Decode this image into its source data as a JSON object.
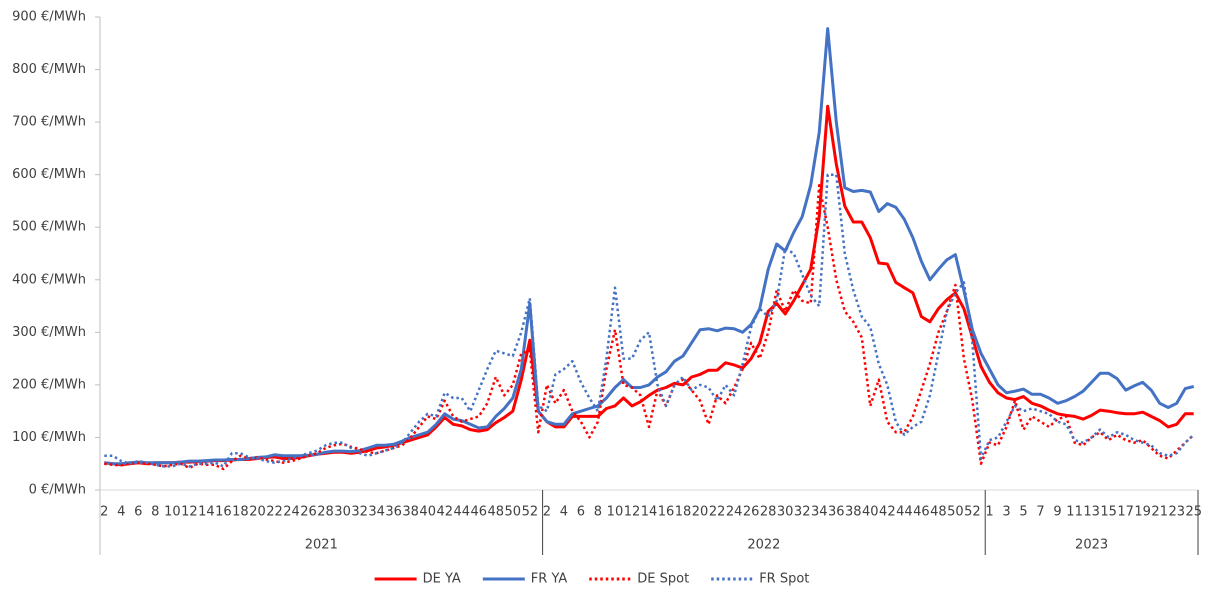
{
  "chart_data": {
    "type": "line",
    "ylim": [
      0,
      900
    ],
    "yticks": [
      {
        "value": 0,
        "label": "0 €/MWh"
      },
      {
        "value": 100,
        "label": "100 €/MWh"
      },
      {
        "value": 200,
        "label": "200 €/MWh"
      },
      {
        "value": 300,
        "label": "300 €/MWh"
      },
      {
        "value": 400,
        "label": "400 €/MWh"
      },
      {
        "value": 500,
        "label": "500 €/MWh"
      },
      {
        "value": 600,
        "label": "600 €/MWh"
      },
      {
        "value": 700,
        "label": "700 €/MWh"
      },
      {
        "value": 800,
        "label": "800 €/MWh"
      },
      {
        "value": 900,
        "label": "900 €/MWh"
      }
    ],
    "category_groups": [
      {
        "name": "2021",
        "categories": [
          "2",
          null,
          "4",
          null,
          "6",
          null,
          "8",
          null,
          "10",
          null,
          "12",
          null,
          "14",
          null,
          "16",
          null,
          "18",
          null,
          "20",
          null,
          "22",
          null,
          "24",
          null,
          "26",
          null,
          "28",
          null,
          "30",
          null,
          "32",
          null,
          "34",
          null,
          "36",
          null,
          "38",
          null,
          "40",
          null,
          "42",
          null,
          "44",
          null,
          "46",
          null,
          "48",
          null,
          "50",
          null,
          "52",
          null
        ]
      },
      {
        "name": "2022",
        "categories": [
          "2",
          null,
          "4",
          null,
          "6",
          null,
          "8",
          null,
          "10",
          null,
          "12",
          null,
          "14",
          null,
          "16",
          null,
          "18",
          null,
          "20",
          null,
          "22",
          null,
          "24",
          null,
          "26",
          null,
          "28",
          null,
          "30",
          null,
          "32",
          null,
          "34",
          null,
          "36",
          null,
          "38",
          null,
          "40",
          null,
          "42",
          null,
          "44",
          null,
          "46",
          null,
          "48",
          null,
          "50",
          null,
          "52",
          null
        ]
      },
      {
        "name": "2023",
        "categories": [
          "1",
          null,
          "3",
          null,
          "5",
          null,
          "7",
          null,
          "9",
          null,
          "11",
          null,
          "13",
          null,
          "15",
          null,
          "17",
          null,
          "19",
          null,
          "21",
          null,
          "23",
          null,
          "25"
        ]
      }
    ],
    "series": [
      {
        "name": "DE YA",
        "color": "#ff0000",
        "dash": false,
        "values": [
          52,
          50,
          48,
          50,
          52,
          50,
          52,
          52,
          52,
          53,
          53,
          54,
          55,
          56,
          56,
          57,
          58,
          58,
          60,
          62,
          63,
          60,
          60,
          62,
          65,
          68,
          70,
          72,
          72,
          70,
          72,
          75,
          80,
          82,
          85,
          90,
          95,
          100,
          105,
          120,
          138,
          125,
          122,
          115,
          112,
          115,
          128,
          138,
          150,
          210,
          285,
          150,
          130,
          120,
          120,
          140,
          140,
          140,
          140,
          155,
          160,
          175,
          160,
          168,
          180,
          190,
          195,
          203,
          200,
          215,
          220,
          228,
          228,
          242,
          238,
          232,
          250,
          280,
          340,
          355,
          335,
          360,
          390,
          420,
          520,
          730,
          620,
          540,
          510,
          510,
          480,
          432,
          430,
          395,
          385,
          375,
          330,
          320,
          345,
          362,
          375,
          345,
          290,
          235,
          205,
          185,
          175,
          172,
          178,
          165,
          160,
          152,
          145,
          142,
          140,
          135,
          142,
          152,
          150,
          147,
          145,
          145,
          148,
          140,
          132,
          120,
          125,
          145,
          145
        ]
      },
      {
        "name": "FR YA",
        "color": "#4472c4",
        "dash": false,
        "values": [
          52,
          50,
          50,
          52,
          53,
          52,
          52,
          52,
          52,
          53,
          55,
          55,
          56,
          57,
          57,
          58,
          58,
          60,
          62,
          63,
          67,
          65,
          65,
          65,
          66,
          68,
          72,
          74,
          74,
          73,
          75,
          80,
          85,
          85,
          87,
          93,
          100,
          105,
          110,
          125,
          145,
          135,
          132,
          125,
          118,
          120,
          140,
          155,
          175,
          230,
          355,
          150,
          130,
          125,
          125,
          145,
          150,
          155,
          160,
          175,
          195,
          210,
          195,
          195,
          200,
          215,
          225,
          245,
          255,
          280,
          305,
          307,
          303,
          308,
          307,
          300,
          315,
          345,
          420,
          468,
          455,
          490,
          520,
          580,
          680,
          878,
          700,
          575,
          568,
          570,
          567,
          530,
          545,
          538,
          515,
          480,
          435,
          400,
          420,
          438,
          448,
          380,
          305,
          260,
          230,
          200,
          185,
          188,
          192,
          182,
          182,
          175,
          165,
          170,
          178,
          188,
          205,
          222,
          222,
          212,
          190,
          198,
          205,
          190,
          165,
          157,
          165,
          193,
          197
        ]
      },
      {
        "name": "DE Spot",
        "color": "#ff0000",
        "dash": true,
        "values": [
          50,
          48,
          47,
          50,
          52,
          50,
          48,
          45,
          48,
          50,
          42,
          50,
          48,
          48,
          40,
          55,
          65,
          60,
          62,
          58,
          55,
          52,
          55,
          60,
          65,
          70,
          80,
          85,
          88,
          82,
          78,
          72,
          70,
          75,
          80,
          85,
          100,
          120,
          140,
          135,
          170,
          140,
          130,
          135,
          140,
          165,
          215,
          180,
          200,
          260,
          265,
          110,
          200,
          165,
          190,
          150,
          130,
          100,
          130,
          230,
          305,
          200,
          195,
          180,
          120,
          190,
          160,
          200,
          210,
          190,
          170,
          125,
          180,
          165,
          195,
          230,
          280,
          250,
          300,
          380,
          340,
          380,
          360,
          355,
          580,
          500,
          400,
          340,
          320,
          290,
          160,
          210,
          130,
          110,
          110,
          140,
          190,
          240,
          300,
          340,
          390,
          250,
          170,
          50,
          90,
          85,
          120,
          170,
          115,
          140,
          130,
          120,
          135,
          140,
          90,
          85,
          100,
          110,
          95,
          105,
          95,
          90,
          95,
          80,
          65,
          60,
          75,
          90,
          105
        ]
      },
      {
        "name": "FR Spot",
        "color": "#4472c4",
        "dash": true,
        "values": [
          65,
          65,
          55,
          50,
          55,
          52,
          48,
          45,
          45,
          50,
          45,
          50,
          50,
          52,
          45,
          70,
          70,
          62,
          60,
          55,
          52,
          55,
          60,
          65,
          70,
          75,
          85,
          90,
          90,
          80,
          70,
          65,
          70,
          75,
          80,
          90,
          110,
          130,
          145,
          140,
          185,
          175,
          175,
          150,
          190,
          230,
          265,
          260,
          255,
          300,
          365,
          160,
          150,
          220,
          230,
          245,
          205,
          175,
          150,
          250,
          385,
          250,
          250,
          285,
          300,
          200,
          160,
          200,
          215,
          190,
          200,
          195,
          170,
          200,
          180,
          240,
          310,
          345,
          330,
          360,
          460,
          450,
          410,
          370,
          350,
          600,
          600,
          450,
          380,
          330,
          310,
          240,
          200,
          130,
          105,
          120,
          130,
          180,
          260,
          340,
          375,
          395,
          280,
          60,
          95,
          100,
          130,
          160,
          150,
          155,
          150,
          145,
          130,
          125,
          95,
          90,
          100,
          115,
          100,
          110,
          105,
          95,
          90,
          85,
          70,
          65,
          70,
          90,
          105
        ]
      }
    ]
  }
}
